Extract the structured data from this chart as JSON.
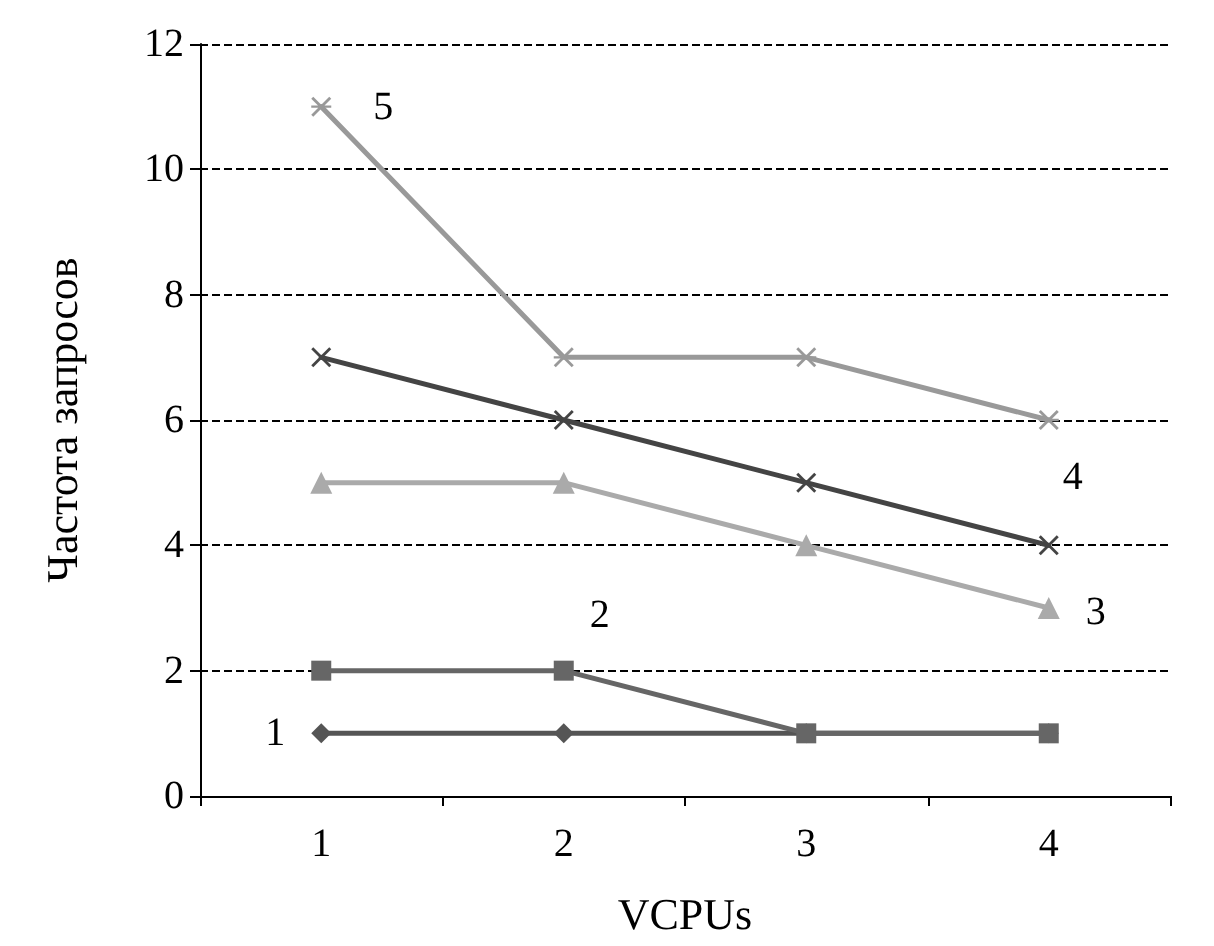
{
  "chart_data": {
    "type": "line",
    "xlabel": "VCPUs",
    "ylabel": "Частота запросов",
    "categories": [
      "1",
      "2",
      "3",
      "4"
    ],
    "ylim": [
      0,
      12
    ],
    "yticks": [
      0,
      2,
      4,
      6,
      8,
      10,
      12
    ],
    "grid": "y",
    "legend": false,
    "line_style": "solid",
    "series": [
      {
        "name": "1",
        "color": "#555555",
        "marker": "diamond",
        "values": [
          1,
          1,
          1,
          1
        ]
      },
      {
        "name": "2",
        "color": "#666666",
        "marker": "square",
        "values": [
          2,
          2,
          1,
          1
        ]
      },
      {
        "name": "3",
        "color": "#aaaaaa",
        "marker": "triangle",
        "values": [
          5,
          5,
          4,
          3
        ]
      },
      {
        "name": "4",
        "color": "#444444",
        "marker": "cross",
        "values": [
          7,
          6,
          5,
          4
        ]
      },
      {
        "name": "5",
        "color": "#999999",
        "marker": "star",
        "values": [
          11,
          7,
          7,
          6
        ]
      }
    ]
  }
}
